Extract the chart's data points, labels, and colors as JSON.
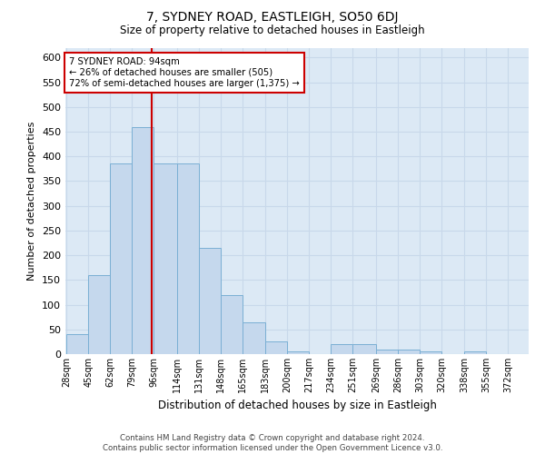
{
  "title": "7, SYDNEY ROAD, EASTLEIGH, SO50 6DJ",
  "subtitle": "Size of property relative to detached houses in Eastleigh",
  "xlabel": "Distribution of detached houses by size in Eastleigh",
  "ylabel": "Number of detached properties",
  "footer_line1": "Contains HM Land Registry data © Crown copyright and database right 2024.",
  "footer_line2": "Contains public sector information licensed under the Open Government Licence v3.0.",
  "annotation_line1": "7 SYDNEY ROAD: 94sqm",
  "annotation_line2": "← 26% of detached houses are smaller (505)",
  "annotation_line3": "72% of semi-detached houses are larger (1,375) →",
  "bar_color": "#c5d8ed",
  "bar_edge_color": "#7aafd4",
  "grid_color": "#c8d8ea",
  "bg_color": "#dce9f5",
  "vline_color": "#cc0000",
  "vline_x": 94,
  "bin_edges": [
    28,
    45,
    62,
    79,
    96,
    114,
    131,
    148,
    165,
    183,
    200,
    217,
    234,
    251,
    269,
    286,
    303,
    320,
    338,
    355,
    372
  ],
  "bar_heights": [
    40,
    160,
    385,
    460,
    385,
    385,
    215,
    120,
    65,
    25,
    5,
    0,
    20,
    20,
    10,
    10,
    5,
    0,
    5,
    0
  ],
  "ylim": [
    0,
    620
  ],
  "yticks": [
    0,
    50,
    100,
    150,
    200,
    250,
    300,
    350,
    400,
    450,
    500,
    550,
    600
  ]
}
